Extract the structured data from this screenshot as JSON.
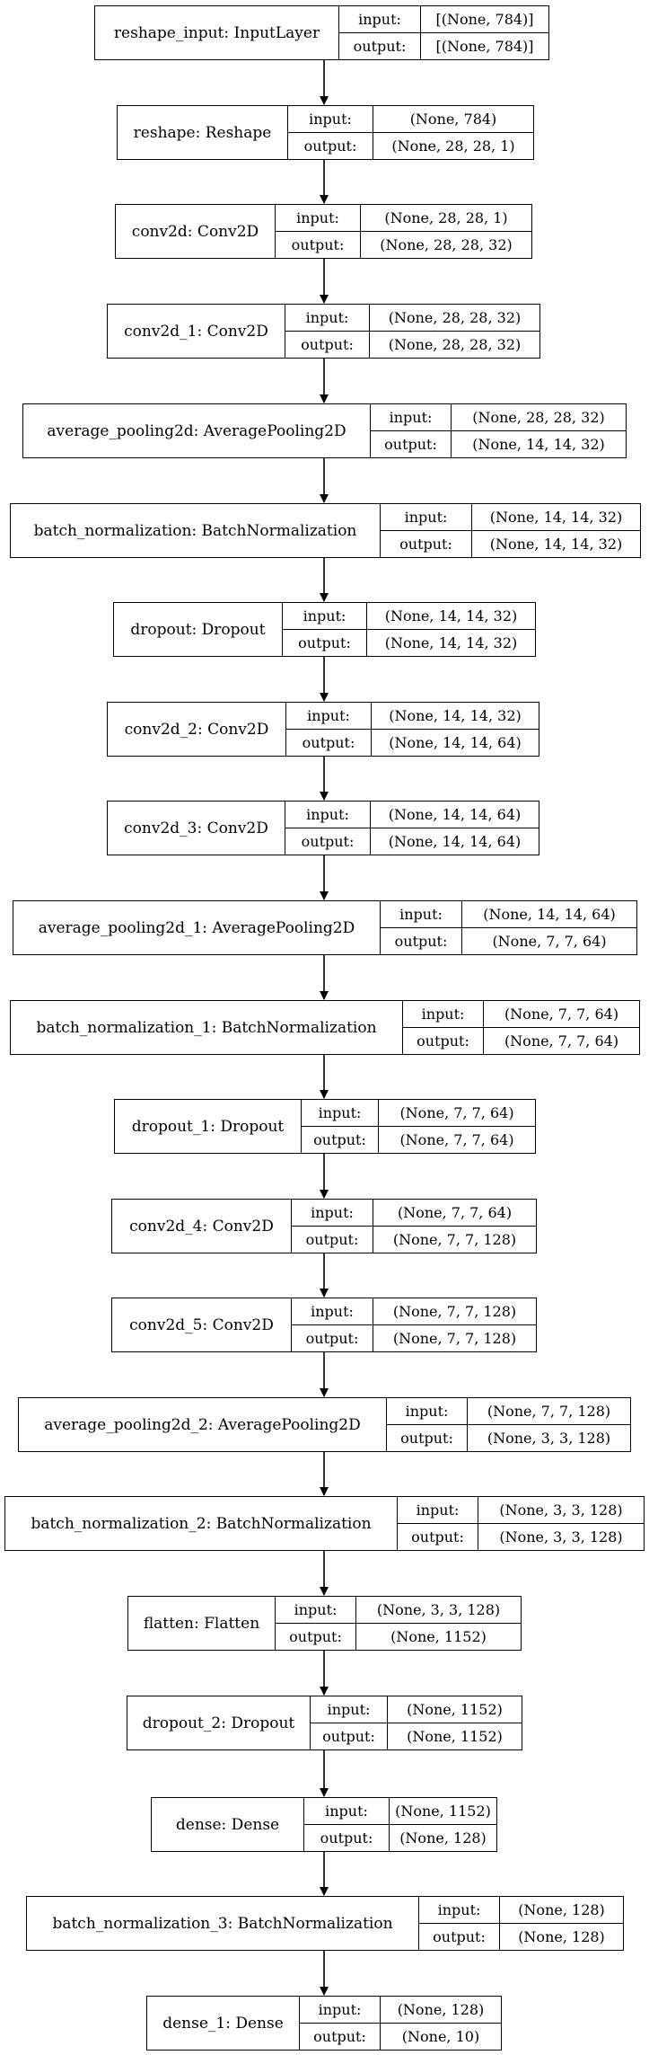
{
  "layers": [
    {
      "name": "reshape_input: InputLayer",
      "input_label": "input:",
      "output_label": "output:",
      "input": "[(None, 784)]",
      "output": "[(None, 784)]"
    },
    {
      "name": "reshape: Reshape",
      "input_label": "input:",
      "output_label": "output:",
      "input": "(None, 784)",
      "output": "(None, 28, 28, 1)"
    },
    {
      "name": "conv2d: Conv2D",
      "input_label": "input:",
      "output_label": "output:",
      "input": "(None, 28, 28, 1)",
      "output": "(None, 28, 28, 32)"
    },
    {
      "name": "conv2d_1: Conv2D",
      "input_label": "input:",
      "output_label": "output:",
      "input": "(None, 28, 28, 32)",
      "output": "(None, 28, 28, 32)"
    },
    {
      "name": "average_pooling2d: AveragePooling2D",
      "input_label": "input:",
      "output_label": "output:",
      "input": "(None, 28, 28, 32)",
      "output": "(None, 14, 14, 32)"
    },
    {
      "name": "batch_normalization: BatchNormalization",
      "input_label": "input:",
      "output_label": "output:",
      "input": "(None, 14, 14, 32)",
      "output": "(None, 14, 14, 32)"
    },
    {
      "name": "dropout: Dropout",
      "input_label": "input:",
      "output_label": "output:",
      "input": "(None, 14, 14, 32)",
      "output": "(None, 14, 14, 32)"
    },
    {
      "name": "conv2d_2: Conv2D",
      "input_label": "input:",
      "output_label": "output:",
      "input": "(None, 14, 14, 32)",
      "output": "(None, 14, 14, 64)"
    },
    {
      "name": "conv2d_3: Conv2D",
      "input_label": "input:",
      "output_label": "output:",
      "input": "(None, 14, 14, 64)",
      "output": "(None, 14, 14, 64)"
    },
    {
      "name": "average_pooling2d_1: AveragePooling2D",
      "input_label": "input:",
      "output_label": "output:",
      "input": "(None, 14, 14, 64)",
      "output": "(None, 7, 7, 64)"
    },
    {
      "name": "batch_normalization_1: BatchNormalization",
      "input_label": "input:",
      "output_label": "output:",
      "input": "(None, 7, 7, 64)",
      "output": "(None, 7, 7, 64)"
    },
    {
      "name": "dropout_1: Dropout",
      "input_label": "input:",
      "output_label": "output:",
      "input": "(None, 7, 7, 64)",
      "output": "(None, 7, 7, 64)"
    },
    {
      "name": "conv2d_4: Conv2D",
      "input_label": "input:",
      "output_label": "output:",
      "input": "(None, 7, 7, 64)",
      "output": "(None, 7, 7, 128)"
    },
    {
      "name": "conv2d_5: Conv2D",
      "input_label": "input:",
      "output_label": "output:",
      "input": "(None, 7, 7, 128)",
      "output": "(None, 7, 7, 128)"
    },
    {
      "name": "average_pooling2d_2: AveragePooling2D",
      "input_label": "input:",
      "output_label": "output:",
      "input": "(None, 7, 7, 128)",
      "output": "(None, 3, 3, 128)"
    },
    {
      "name": "batch_normalization_2: BatchNormalization",
      "input_label": "input:",
      "output_label": "output:",
      "input": "(None, 3, 3, 128)",
      "output": "(None, 3, 3, 128)"
    },
    {
      "name": "flatten: Flatten",
      "input_label": "input:",
      "output_label": "output:",
      "input": "(None, 3, 3, 128)",
      "output": "(None, 1152)"
    },
    {
      "name": "dropout_2: Dropout",
      "input_label": "input:",
      "output_label": "output:",
      "input": "(None, 1152)",
      "output": "(None, 1152)"
    },
    {
      "name": "dense: Dense",
      "input_label": "input:",
      "output_label": "output:",
      "input": "(None, 1152)",
      "output": "(None, 128)"
    },
    {
      "name": "batch_normalization_3: BatchNormalization",
      "input_label": "input:",
      "output_label": "output:",
      "input": "(None, 128)",
      "output": "(None, 128)"
    },
    {
      "name": "dense_1: Dense",
      "input_label": "input:",
      "output_label": "output:",
      "input": "(None, 128)",
      "output": "(None, 10)"
    }
  ]
}
